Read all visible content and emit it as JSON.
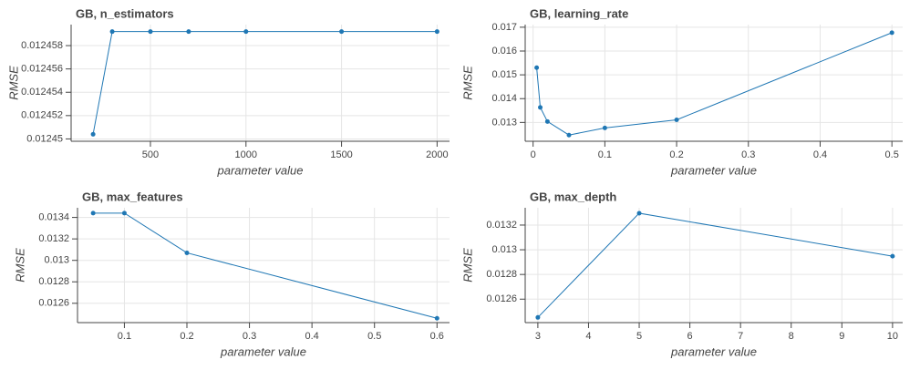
{
  "chart_data": [
    {
      "type": "line",
      "title": "GB, n_estimators",
      "x_label": "parameter value",
      "y_label": "RMSE",
      "color": "#1f77b4",
      "grid": true,
      "x": [
        200,
        300,
        500,
        700,
        1000,
        1500,
        2000
      ],
      "values": [
        0.0124504,
        0.0124592,
        0.0124592,
        0.0124592,
        0.0124592,
        0.0124592,
        0.0124592
      ],
      "xlim": [
        85,
        2065
      ],
      "ylim": [
        0.0124498,
        0.0124598
      ],
      "xticks": [
        500,
        1000,
        1500,
        2000
      ],
      "yticks": [
        0.01245,
        0.012452,
        0.012454,
        0.012456,
        0.012458
      ]
    },
    {
      "type": "line",
      "title": "GB, learning_rate",
      "x_label": "parameter value",
      "y_label": "RMSE",
      "color": "#1f77b4",
      "grid": true,
      "x": [
        0.005,
        0.01,
        0.02,
        0.05,
        0.1,
        0.2,
        0.5
      ],
      "values": [
        0.0153,
        0.01363,
        0.01304,
        0.01247,
        0.01277,
        0.01311,
        0.01677
      ],
      "xlim": [
        -0.011,
        0.515
      ],
      "ylim": [
        0.01221,
        0.01711
      ],
      "xticks": [
        0,
        0.1,
        0.2,
        0.3,
        0.4,
        0.5
      ],
      "yticks": [
        0.013,
        0.014,
        0.015,
        0.016,
        0.017
      ]
    },
    {
      "type": "line",
      "title": "GB, max_features",
      "x_label": "parameter value",
      "y_label": "RMSE",
      "color": "#1f77b4",
      "grid": true,
      "x": [
        0.05,
        0.1,
        0.2,
        0.6
      ],
      "values": [
        0.01344,
        0.01344,
        0.01307,
        0.01246
      ],
      "xlim": [
        0.025,
        0.62
      ],
      "ylim": [
        0.01242,
        0.01349
      ],
      "xticks": [
        0.1,
        0.2,
        0.3,
        0.4,
        0.5,
        0.6
      ],
      "yticks": [
        0.0126,
        0.0128,
        0.013,
        0.0132,
        0.0134
      ]
    },
    {
      "type": "line",
      "title": "GB, max_depth",
      "x_label": "parameter value",
      "y_label": "RMSE",
      "color": "#1f77b4",
      "grid": true,
      "x": [
        3,
        5,
        10
      ],
      "values": [
        0.012452,
        0.013296,
        0.012948
      ],
      "xlim": [
        2.75,
        10.2
      ],
      "ylim": [
        0.01241,
        0.01334
      ],
      "xticks": [
        3,
        4,
        5,
        6,
        7,
        8,
        9,
        10
      ],
      "yticks": [
        0.0126,
        0.0128,
        0.013,
        0.0132
      ]
    }
  ]
}
